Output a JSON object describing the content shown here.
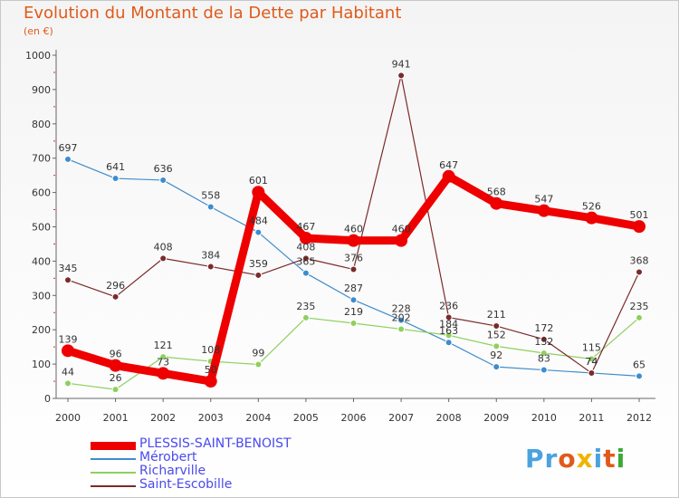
{
  "title": "Evolution du Montant de la Dette par Habitant",
  "subtitle": "(en €)",
  "logo": {
    "text": "Proxiti",
    "colors": [
      "#4aa3df",
      "#4aa3df",
      "#e05a1a",
      "#f0b400",
      "#4aa3df",
      "#e05a1a",
      "#3aaa35"
    ]
  },
  "chart_data": {
    "type": "line",
    "x": [
      "2000",
      "2001",
      "2002",
      "2003",
      "2004",
      "2005",
      "2006",
      "2007",
      "2008",
      "2009",
      "2010",
      "2011",
      "2012"
    ],
    "ylim": [
      0,
      1000
    ],
    "yticks": [
      "0",
      "100",
      "200",
      "300",
      "400",
      "500",
      "600",
      "700",
      "800",
      "900",
      "1000"
    ],
    "grid": false,
    "legend_position": "bottom-left",
    "series": [
      {
        "name": "PLESSIS-SAINT-BENOIST",
        "color": "#ee0000",
        "values": [
          139,
          96,
          73,
          50,
          601,
          467,
          460,
          460,
          647,
          568,
          547,
          526,
          501
        ],
        "labels": [
          "139",
          "96",
          "73",
          "50",
          "601",
          "467",
          "460",
          "460",
          "647",
          "568",
          "547",
          "526",
          "501"
        ]
      },
      {
        "name": "Mérobert",
        "color": "#3f8ccc",
        "values": [
          697,
          641,
          636,
          558,
          484,
          365,
          287,
          228,
          163,
          92,
          83,
          74,
          65
        ],
        "labels": [
          "697",
          "641",
          "636",
          "558",
          "484",
          "365",
          "287",
          "228",
          "163",
          "92",
          "83",
          "74",
          "65"
        ]
      },
      {
        "name": "Richarville",
        "color": "#8ed05e",
        "values": [
          44,
          26,
          121,
          108,
          99,
          235,
          219,
          202,
          184,
          152,
          132,
          115,
          235
        ],
        "labels": [
          "44",
          "26",
          "121",
          "108",
          "99",
          "235",
          "219",
          "202",
          "184",
          "152",
          "132",
          "115",
          "235"
        ]
      },
      {
        "name": "Saint-Escobille",
        "color": "#7b2a2a",
        "values": [
          345,
          296,
          408,
          384,
          359,
          408,
          376,
          941,
          236,
          211,
          172,
          74,
          368
        ],
        "labels": [
          "345",
          "296",
          "408",
          "384",
          "359",
          "408",
          "376",
          "941",
          "236",
          "211",
          "172",
          "74",
          "368"
        ]
      }
    ]
  }
}
